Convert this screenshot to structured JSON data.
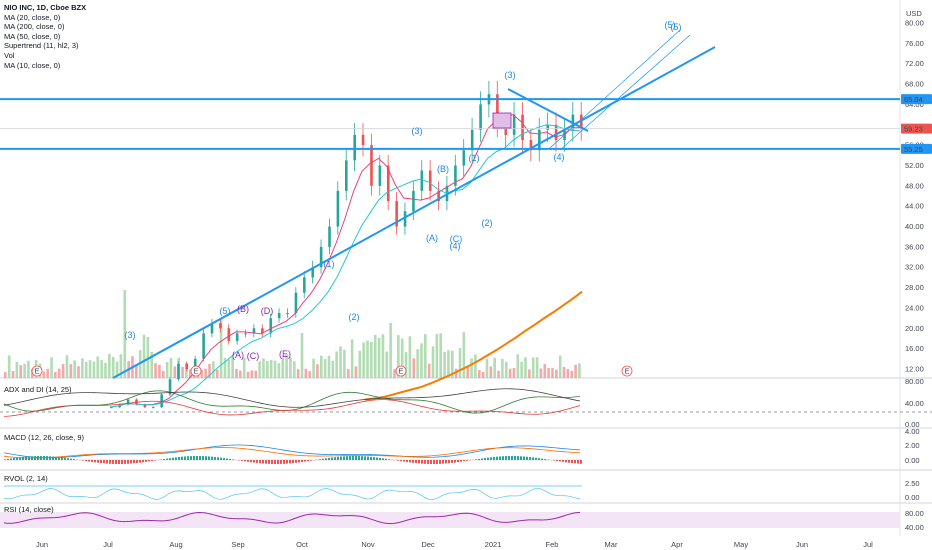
{
  "header": {
    "title": "NIO INC, 1D, Cboe BZX",
    "currency": "USD",
    "indicators": [
      "MA (20, close, 0)",
      "MA (200, close, 0)",
      "MA (50, close, 0)",
      "Supertrend (11, hl2, 3)",
      "Vol",
      "MA (10, close, 0)"
    ]
  },
  "colors": {
    "up": "#26a69a",
    "down": "#ef5350",
    "trend_line": "#2196f3",
    "ma200": "#f57c00",
    "ma20": "#ec407a",
    "ma50": "#26c6da",
    "supertrend": "#43a047",
    "wave_blue": "#1e88e5",
    "wave_purple": "#8e24aa",
    "price_badge": "#ef5350",
    "level_badge": "#2196f3",
    "rsi": "#9c27b0",
    "rsi_band": "#f3e5f5",
    "rvol": "#4fc3f7"
  },
  "chart_data": {
    "type": "candlestick",
    "x_labels": [
      "Jun",
      "Jul",
      "Aug",
      "Sep",
      "Oct",
      "Nov",
      "Dec",
      "2021",
      "Feb",
      "Mar",
      "Apr",
      "May",
      "Jun",
      "Jul"
    ],
    "y_ticks": [
      "80.00",
      "76.00",
      "72.00",
      "68.00",
      "64.00",
      "56.00",
      "52.00",
      "48.00",
      "44.00",
      "40.00",
      "36.00",
      "32.00",
      "28.00",
      "24.00",
      "20.00",
      "16.00",
      "12.00"
    ],
    "ylim": [
      10,
      82
    ],
    "price_labels": {
      "current": "59.23",
      "resistance": "65.04",
      "support": "55.25"
    },
    "horizontal_levels": [
      65.04,
      55.25
    ],
    "closes": [
      4.5,
      5,
      6,
      5,
      4.5,
      4.5,
      7,
      10,
      13,
      12,
      14,
      19,
      21,
      20,
      17.5,
      19,
      19,
      20,
      19,
      22,
      23,
      23,
      27,
      30,
      32,
      36,
      40,
      47,
      53,
      58,
      56,
      48,
      52,
      45,
      40,
      43,
      47,
      51,
      47,
      45,
      48,
      52,
      55,
      59,
      64,
      66,
      60,
      58,
      62,
      57,
      55,
      59,
      60,
      57,
      59,
      62,
      59.23
    ],
    "ma200": [
      6,
      6.2,
      6.5,
      7,
      7.5,
      8,
      8.5,
      9.2,
      10,
      10.8,
      11.7,
      12.6,
      13.6,
      14.7,
      15.8,
      17,
      18.2,
      19.5,
      20.7,
      22,
      23.2,
      24.5,
      25.8,
      27.2
    ],
    "waves": [
      {
        "label": "(3)",
        "x": 130,
        "y": 338,
        "color": "#1e88e5"
      },
      {
        "label": "(5)",
        "x": 225,
        "y": 314,
        "color": "#1e88e5"
      },
      {
        "label": "(B)",
        "x": 243,
        "y": 312,
        "color": "#8e24aa"
      },
      {
        "label": "(D)",
        "x": 267,
        "y": 314,
        "color": "#8e24aa"
      },
      {
        "label": "(A)",
        "x": 238,
        "y": 358,
        "color": "#8e24aa"
      },
      {
        "label": "(C)",
        "x": 253,
        "y": 359,
        "color": "#8e24aa"
      },
      {
        "label": "(E)",
        "x": 285,
        "y": 357,
        "color": "#8e24aa"
      },
      {
        "label": "(1)",
        "x": 329,
        "y": 267,
        "color": "#1e88e5"
      },
      {
        "label": "(2)",
        "x": 354,
        "y": 320,
        "color": "#1e88e5"
      },
      {
        "label": "(3)",
        "x": 417,
        "y": 134,
        "color": "#1e88e5"
      },
      {
        "label": "(B)",
        "x": 443,
        "y": 172,
        "color": "#1e88e5"
      },
      {
        "label": "(A)",
        "x": 432,
        "y": 241,
        "color": "#1e88e5"
      },
      {
        "label": "(C)",
        "x": 456,
        "y": 242,
        "color": "#1e88e5"
      },
      {
        "label": "(4)",
        "x": 455,
        "y": 249,
        "color": "#1e88e5"
      },
      {
        "label": "(1)",
        "x": 474,
        "y": 161,
        "color": "#1e88e5"
      },
      {
        "label": "(2)",
        "x": 487,
        "y": 226,
        "color": "#1e88e5"
      },
      {
        "label": "(3)",
        "x": 510,
        "y": 78,
        "color": "#1e88e5"
      },
      {
        "label": "(4)",
        "x": 559,
        "y": 160,
        "color": "#1e88e5"
      },
      {
        "label": "(5)",
        "x": 670,
        "y": 28,
        "color": "#1e88e5"
      },
      {
        "label": "(5)",
        "x": 676,
        "y": 30,
        "color": "#1e88e5"
      }
    ],
    "panes": {
      "adx": {
        "label": "ADX and DI (14, 25)",
        "ticks": [
          "80.00",
          "40.00",
          "0.00"
        ]
      },
      "macd": {
        "label": "MACD (12, 26, close, 9)",
        "ticks": [
          "4.00",
          "2.00",
          "0.00"
        ]
      },
      "rvol": {
        "label": "RVOL (2, 14)",
        "ticks": [
          "2.50",
          "0.00"
        ]
      },
      "rsi": {
        "label": "RSI (14, close)",
        "ticks": [
          "80.00",
          "40.00"
        ]
      }
    }
  }
}
